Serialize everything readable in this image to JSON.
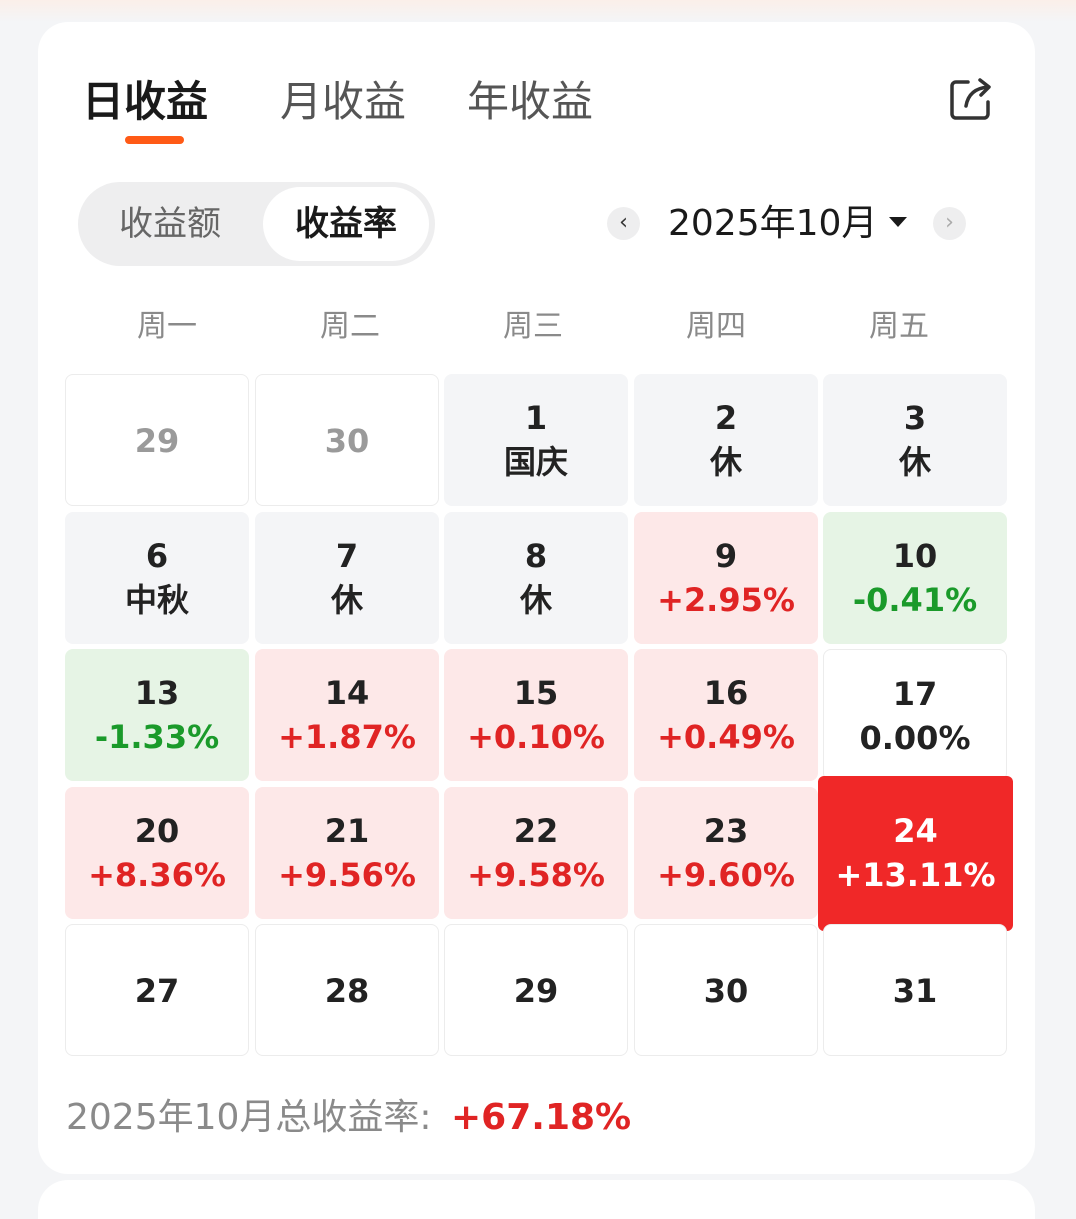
{
  "tabs": [
    {
      "label": "日收益",
      "active": true
    },
    {
      "label": "月收益",
      "active": false
    },
    {
      "label": "年收益",
      "active": false
    }
  ],
  "share_icon": "share-icon",
  "segment": {
    "amount_label": "收益额",
    "rate_label": "收益率",
    "selected": "收益率"
  },
  "month_nav": {
    "prev_icon": "‹",
    "label": "2025年10月",
    "next_icon": "›"
  },
  "weekdays": [
    "周一",
    "周二",
    "周三",
    "周四",
    "周五"
  ],
  "calendar": {
    "weeks": [
      [
        {
          "day": "29",
          "sub": "",
          "style": "outside"
        },
        {
          "day": "30",
          "sub": "",
          "style": "outside"
        },
        {
          "day": "1",
          "sub": "国庆",
          "style": "holiday"
        },
        {
          "day": "2",
          "sub": "休",
          "style": "holiday"
        },
        {
          "day": "3",
          "sub": "休",
          "style": "holiday"
        }
      ],
      [
        {
          "day": "6",
          "sub": "中秋",
          "style": "holiday"
        },
        {
          "day": "7",
          "sub": "休",
          "style": "holiday"
        },
        {
          "day": "8",
          "sub": "休",
          "style": "holiday"
        },
        {
          "day": "9",
          "sub": "+2.95%",
          "style": "gain"
        },
        {
          "day": "10",
          "sub": "-0.41%",
          "style": "loss"
        }
      ],
      [
        {
          "day": "13",
          "sub": "-1.33%",
          "style": "loss"
        },
        {
          "day": "14",
          "sub": "+1.87%",
          "style": "gain"
        },
        {
          "day": "15",
          "sub": "+0.10%",
          "style": "gain"
        },
        {
          "day": "16",
          "sub": "+0.49%",
          "style": "gain"
        },
        {
          "day": "17",
          "sub": "0.00%",
          "style": "flat"
        }
      ],
      [
        {
          "day": "20",
          "sub": "+8.36%",
          "style": "gain"
        },
        {
          "day": "21",
          "sub": "+9.56%",
          "style": "gain"
        },
        {
          "day": "22",
          "sub": "+9.58%",
          "style": "gain"
        },
        {
          "day": "23",
          "sub": "+9.60%",
          "style": "gain"
        },
        {
          "day": "24",
          "sub": "+13.11%",
          "style": "selected"
        }
      ],
      [
        {
          "day": "27",
          "sub": "",
          "style": "future"
        },
        {
          "day": "28",
          "sub": "",
          "style": "future"
        },
        {
          "day": "29",
          "sub": "",
          "style": "future"
        },
        {
          "day": "30",
          "sub": "",
          "style": "future"
        },
        {
          "day": "31",
          "sub": "",
          "style": "future"
        }
      ]
    ]
  },
  "total": {
    "label": "2025年10月总收益率:",
    "value": "+67.18%"
  },
  "colors": {
    "accent": "#ff5a16",
    "gain": "#e02424",
    "loss": "#1a9a2a",
    "selected_bg": "#f02828"
  }
}
